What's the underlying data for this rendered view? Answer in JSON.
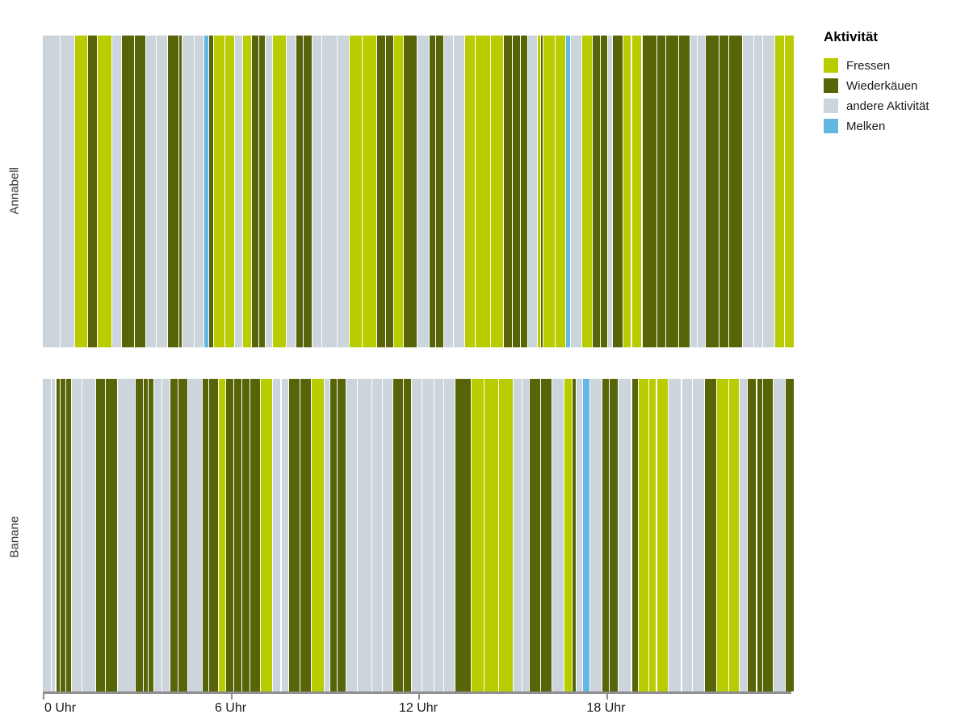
{
  "chart_data": {
    "type": "heatmap",
    "subtype": "categorical-activity-timeline",
    "title": "",
    "xlabel": "",
    "ylabel": "",
    "x_axis": {
      "unit": "hours",
      "range": [
        0,
        24
      ],
      "ticks": [
        0,
        6,
        12,
        18
      ],
      "tick_labels": [
        "0 Uhr",
        "6 Uhr",
        "12 Uhr",
        "18 Uhr"
      ]
    },
    "rows": [
      {
        "name": "Annabell"
      },
      {
        "name": "Banane"
      }
    ],
    "legend": {
      "title": "Aktivität",
      "position": "right-top",
      "entries": [
        {
          "key": "F",
          "label": "Fressen",
          "color": "#b9cc00"
        },
        {
          "key": "W",
          "label": "Wiederkäuen",
          "color": "#586408"
        },
        {
          "key": "A",
          "label": "andere Aktivität",
          "color": "#ccd4dc"
        },
        {
          "key": "M",
          "label": "Melken",
          "color": "#65b7e3"
        }
      ]
    },
    "series": [
      {
        "name": "Annabell",
        "segments": [
          [
            0.0,
            0.55,
            "A"
          ],
          [
            0.55,
            1.01,
            "A"
          ],
          [
            1.01,
            1.42,
            "F"
          ],
          [
            1.42,
            1.73,
            "W"
          ],
          [
            1.73,
            2.2,
            "F"
          ],
          [
            2.2,
            2.5,
            "A"
          ],
          [
            2.5,
            2.92,
            "W"
          ],
          [
            2.92,
            3.28,
            "W"
          ],
          [
            3.28,
            3.61,
            "A"
          ],
          [
            3.61,
            3.97,
            "A"
          ],
          [
            3.97,
            4.34,
            "W"
          ],
          [
            4.34,
            4.44,
            "W"
          ],
          [
            4.44,
            4.82,
            "A"
          ],
          [
            4.82,
            5.13,
            "A"
          ],
          [
            5.13,
            5.28,
            "M"
          ],
          [
            5.28,
            5.45,
            "W"
          ],
          [
            5.45,
            5.81,
            "F"
          ],
          [
            5.81,
            6.12,
            "F"
          ],
          [
            6.12,
            6.38,
            "A"
          ],
          [
            6.38,
            6.65,
            "F"
          ],
          [
            6.65,
            6.9,
            "W"
          ],
          [
            6.9,
            7.09,
            "W"
          ],
          [
            7.09,
            7.34,
            "A"
          ],
          [
            7.34,
            7.78,
            "F"
          ],
          [
            7.78,
            8.09,
            "A"
          ],
          [
            8.09,
            8.3,
            "W"
          ],
          [
            8.3,
            8.59,
            "W"
          ],
          [
            8.59,
            8.9,
            "A"
          ],
          [
            8.9,
            9.4,
            "A"
          ],
          [
            9.4,
            9.78,
            "A"
          ],
          [
            9.78,
            10.2,
            "F"
          ],
          [
            10.2,
            10.66,
            "F"
          ],
          [
            10.66,
            10.95,
            "W"
          ],
          [
            10.95,
            11.21,
            "W"
          ],
          [
            11.21,
            11.52,
            "F"
          ],
          [
            11.52,
            11.95,
            "W"
          ],
          [
            11.95,
            12.34,
            "A"
          ],
          [
            12.34,
            12.55,
            "W"
          ],
          [
            12.55,
            12.81,
            "W"
          ],
          [
            12.81,
            13.1,
            "A"
          ],
          [
            13.1,
            13.46,
            "A"
          ],
          [
            13.46,
            13.8,
            "F"
          ],
          [
            13.8,
            14.3,
            "F"
          ],
          [
            14.3,
            14.71,
            "F"
          ],
          [
            14.71,
            15.0,
            "W"
          ],
          [
            15.0,
            15.25,
            "W"
          ],
          [
            15.25,
            15.48,
            "W"
          ],
          [
            15.48,
            15.79,
            "A"
          ],
          [
            15.79,
            15.9,
            "F"
          ],
          [
            15.9,
            15.97,
            "W"
          ],
          [
            15.97,
            16.35,
            "F"
          ],
          [
            16.35,
            16.69,
            "F"
          ],
          [
            16.69,
            16.84,
            "M"
          ],
          [
            16.84,
            17.21,
            "A"
          ],
          [
            17.21,
            17.56,
            "F"
          ],
          [
            17.56,
            17.8,
            "W"
          ],
          [
            17.8,
            18.03,
            "W"
          ],
          [
            18.03,
            18.2,
            "A"
          ],
          [
            18.2,
            18.54,
            "W"
          ],
          [
            18.54,
            18.8,
            "F"
          ],
          [
            18.8,
            19.13,
            "F"
          ],
          [
            19.15,
            19.6,
            "W"
          ],
          [
            19.6,
            19.9,
            "W"
          ],
          [
            19.9,
            20.3,
            "W"
          ],
          [
            20.3,
            20.66,
            "W"
          ],
          [
            20.66,
            20.9,
            "A"
          ],
          [
            20.9,
            21.17,
            "A"
          ],
          [
            21.17,
            21.6,
            "W"
          ],
          [
            21.6,
            21.9,
            "W"
          ],
          [
            21.9,
            22.34,
            "W"
          ],
          [
            22.34,
            22.7,
            "A"
          ],
          [
            22.7,
            23.0,
            "A"
          ],
          [
            23.0,
            23.37,
            "A"
          ],
          [
            23.37,
            23.7,
            "F"
          ],
          [
            23.7,
            24.0,
            "F"
          ]
        ]
      },
      {
        "name": "Banane",
        "segments": [
          [
            0.0,
            0.25,
            "A"
          ],
          [
            0.25,
            0.4,
            "A"
          ],
          [
            0.4,
            0.55,
            "W"
          ],
          [
            0.55,
            0.72,
            "W"
          ],
          [
            0.72,
            0.91,
            "W"
          ],
          [
            0.91,
            1.25,
            "A"
          ],
          [
            1.25,
            1.69,
            "A"
          ],
          [
            1.69,
            2.0,
            "W"
          ],
          [
            2.0,
            2.38,
            "W"
          ],
          [
            2.38,
            2.94,
            "A"
          ],
          [
            2.94,
            3.2,
            "W"
          ],
          [
            3.2,
            3.35,
            "W"
          ],
          [
            3.35,
            3.54,
            "W"
          ],
          [
            3.54,
            3.8,
            "A"
          ],
          [
            3.8,
            4.06,
            "A"
          ],
          [
            4.06,
            4.3,
            "W"
          ],
          [
            4.3,
            4.62,
            "W"
          ],
          [
            4.62,
            5.09,
            "A"
          ],
          [
            5.09,
            5.3,
            "W"
          ],
          [
            5.3,
            5.61,
            "W"
          ],
          [
            5.61,
            5.83,
            "F"
          ],
          [
            5.83,
            6.1,
            "W"
          ],
          [
            6.1,
            6.35,
            "W"
          ],
          [
            6.35,
            6.6,
            "W"
          ],
          [
            6.6,
            6.95,
            "W"
          ],
          [
            6.95,
            7.34,
            "F"
          ],
          [
            7.34,
            7.6,
            "A"
          ],
          [
            7.6,
            7.85,
            "A"
          ],
          [
            7.85,
            8.2,
            "W"
          ],
          [
            8.2,
            8.56,
            "W"
          ],
          [
            8.56,
            8.97,
            "F"
          ],
          [
            8.97,
            9.16,
            "A"
          ],
          [
            9.16,
            9.4,
            "W"
          ],
          [
            9.4,
            9.67,
            "W"
          ],
          [
            9.67,
            10.05,
            "A"
          ],
          [
            10.05,
            10.5,
            "A"
          ],
          [
            10.5,
            10.85,
            "A"
          ],
          [
            10.85,
            11.17,
            "A"
          ],
          [
            11.17,
            11.5,
            "W"
          ],
          [
            11.5,
            11.78,
            "W"
          ],
          [
            11.78,
            12.1,
            "A"
          ],
          [
            12.1,
            12.5,
            "A"
          ],
          [
            12.5,
            12.8,
            "A"
          ],
          [
            12.8,
            13.16,
            "A"
          ],
          [
            13.16,
            13.67,
            "W"
          ],
          [
            13.67,
            14.1,
            "F"
          ],
          [
            14.1,
            14.55,
            "F"
          ],
          [
            14.55,
            15.01,
            "F"
          ],
          [
            15.01,
            15.3,
            "A"
          ],
          [
            15.3,
            15.53,
            "A"
          ],
          [
            15.53,
            15.9,
            "W"
          ],
          [
            15.9,
            16.26,
            "W"
          ],
          [
            16.26,
            16.65,
            "A"
          ],
          [
            16.65,
            16.9,
            "F"
          ],
          [
            16.9,
            17.03,
            "W"
          ],
          [
            17.03,
            17.25,
            "A"
          ],
          [
            17.25,
            17.46,
            "M"
          ],
          [
            17.46,
            17.85,
            "A"
          ],
          [
            17.85,
            18.1,
            "W"
          ],
          [
            18.1,
            18.37,
            "W"
          ],
          [
            18.37,
            18.8,
            "A"
          ],
          [
            18.8,
            19.02,
            "W"
          ],
          [
            19.02,
            19.35,
            "F"
          ],
          [
            19.35,
            19.6,
            "F"
          ],
          [
            19.6,
            19.97,
            "F"
          ],
          [
            19.97,
            20.4,
            "A"
          ],
          [
            20.4,
            20.75,
            "A"
          ],
          [
            20.75,
            21.13,
            "A"
          ],
          [
            21.13,
            21.52,
            "W"
          ],
          [
            21.52,
            21.9,
            "F"
          ],
          [
            21.9,
            22.25,
            "F"
          ],
          [
            22.25,
            22.51,
            "A"
          ],
          [
            22.51,
            22.8,
            "W"
          ],
          [
            22.8,
            23.0,
            "W"
          ],
          [
            23.0,
            23.33,
            "W"
          ],
          [
            23.33,
            23.72,
            "A"
          ],
          [
            23.72,
            24.0,
            "W"
          ]
        ]
      }
    ],
    "axis_style": {
      "line_color": "#8e8e8e",
      "label_color": "#1c1c1c",
      "row_label_color": "#333333"
    }
  }
}
